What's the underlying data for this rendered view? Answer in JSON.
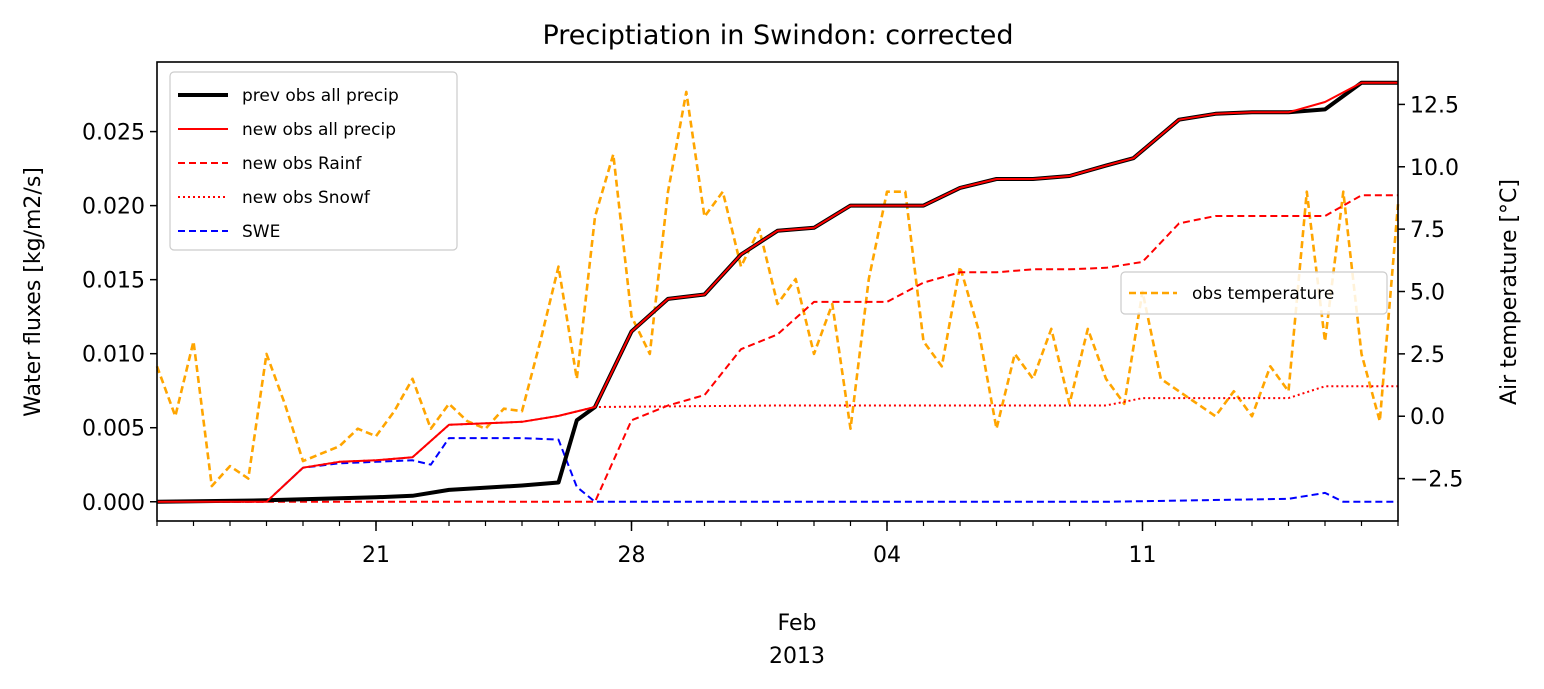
{
  "chart_data": {
    "type": "line",
    "title": "Preciptiation in Swindon: corrected",
    "ylabel": "Water fluxes [kg/m2/s]",
    "y2label": "Air temperature [°C]",
    "x_axis": {
      "start": "2013-01-15",
      "end": "2013-02-18",
      "tick_labels": [
        "21",
        "28",
        "04",
        "11"
      ],
      "tick_dates": [
        "2013-01-21",
        "2013-01-28",
        "2013-02-04",
        "2013-02-11"
      ],
      "month_label": "Feb",
      "year_label": "2013"
    },
    "ylim": [
      -0.0013,
      0.0297
    ],
    "y_ticks": [
      "0.000",
      "0.005",
      "0.010",
      "0.015",
      "0.020",
      "0.025"
    ],
    "y2lim": [
      -4.2,
      14.2
    ],
    "y2_ticks": [
      "−2.5",
      "0.0",
      "2.5",
      "5.0",
      "7.5",
      "10.0",
      "12.5"
    ],
    "legend_left": {
      "placement": "upper-left",
      "entries": [
        {
          "label": "prev obs all precip",
          "color": "#000000",
          "style": "solid-thick"
        },
        {
          "label": "new obs all precip",
          "color": "#ff0000",
          "style": "solid"
        },
        {
          "label": "new obs Rainf",
          "color": "#ff0000",
          "style": "dashed"
        },
        {
          "label": "new obs Snowf",
          "color": "#ff0000",
          "style": "dotted"
        },
        {
          "label": "SWE",
          "color": "#0000ff",
          "style": "dashed"
        }
      ]
    },
    "legend_right": {
      "placement": "center-right",
      "entries": [
        {
          "label": "obs temperature",
          "color": "#ffa500",
          "style": "dashed"
        }
      ]
    },
    "series": [
      {
        "name": "prev obs all precip",
        "axis": "left",
        "color": "#000000",
        "x": [
          "2013-01-15",
          "2013-01-18",
          "2013-01-21",
          "2013-01-22",
          "2013-01-23",
          "2013-01-25",
          "2013-01-26",
          "2013-01-26 12:00",
          "2013-01-27",
          "2013-01-28",
          "2013-01-29",
          "2013-01-30",
          "2013-01-31",
          "2013-02-01",
          "2013-02-02",
          "2013-02-03",
          "2013-02-04",
          "2013-02-05",
          "2013-02-06",
          "2013-02-07",
          "2013-02-08",
          "2013-02-09",
          "2013-02-10",
          "2013-02-10 18:00",
          "2013-02-12",
          "2013-02-13",
          "2013-02-14",
          "2013-02-15",
          "2013-02-16",
          "2013-02-17",
          "2013-02-18"
        ],
        "y": [
          0.0,
          0.0001,
          0.0003,
          0.0004,
          0.0008,
          0.0011,
          0.0013,
          0.0055,
          0.0064,
          0.0115,
          0.0137,
          0.014,
          0.0167,
          0.0183,
          0.0185,
          0.02,
          0.02,
          0.02,
          0.0212,
          0.0218,
          0.0218,
          0.022,
          0.0227,
          0.0232,
          0.0258,
          0.0262,
          0.0263,
          0.0263,
          0.0265,
          0.0283,
          0.0283
        ]
      },
      {
        "name": "new obs all precip",
        "axis": "left",
        "color": "#ff0000",
        "x": [
          "2013-01-15",
          "2013-01-18",
          "2013-01-19",
          "2013-01-20",
          "2013-01-21",
          "2013-01-22",
          "2013-01-23",
          "2013-01-25",
          "2013-01-26",
          "2013-01-27",
          "2013-01-28",
          "2013-01-29",
          "2013-01-30",
          "2013-01-31",
          "2013-02-01",
          "2013-02-02",
          "2013-02-03",
          "2013-02-04",
          "2013-02-05",
          "2013-02-06",
          "2013-02-07",
          "2013-02-08",
          "2013-02-09",
          "2013-02-10",
          "2013-02-10 18:00",
          "2013-02-12",
          "2013-02-13",
          "2013-02-14",
          "2013-02-15",
          "2013-02-16",
          "2013-02-17",
          "2013-02-18"
        ],
        "y": [
          0.0,
          0.0,
          0.0023,
          0.0027,
          0.0028,
          0.003,
          0.0052,
          0.0054,
          0.0058,
          0.0064,
          0.0115,
          0.0137,
          0.014,
          0.0167,
          0.0183,
          0.0185,
          0.02,
          0.02,
          0.02,
          0.0212,
          0.0218,
          0.0218,
          0.022,
          0.0227,
          0.0232,
          0.0258,
          0.0262,
          0.0263,
          0.0263,
          0.027,
          0.0283,
          0.0283
        ]
      },
      {
        "name": "new obs Rainf",
        "axis": "left",
        "color": "#ff0000",
        "x": [
          "2013-01-15",
          "2013-01-27",
          "2013-01-28",
          "2013-01-29",
          "2013-01-30",
          "2013-01-31",
          "2013-02-01",
          "2013-02-02",
          "2013-02-03",
          "2013-02-04",
          "2013-02-05",
          "2013-02-06",
          "2013-02-07",
          "2013-02-08",
          "2013-02-09",
          "2013-02-10",
          "2013-02-11",
          "2013-02-12",
          "2013-02-13",
          "2013-02-14",
          "2013-02-15",
          "2013-02-16",
          "2013-02-17",
          "2013-02-18"
        ],
        "y": [
          0.0,
          0.0,
          0.0055,
          0.0065,
          0.0072,
          0.0103,
          0.0113,
          0.0135,
          0.0135,
          0.0135,
          0.0148,
          0.0155,
          0.0155,
          0.0157,
          0.0157,
          0.0158,
          0.0162,
          0.0188,
          0.0193,
          0.0193,
          0.0193,
          0.0193,
          0.0207,
          0.0207
        ]
      },
      {
        "name": "new obs Snowf",
        "axis": "left",
        "color": "#ff0000",
        "x": [
          "2013-01-15",
          "2013-01-18",
          "2013-01-19",
          "2013-01-20",
          "2013-01-21",
          "2013-01-22",
          "2013-01-23",
          "2013-01-25",
          "2013-01-26",
          "2013-01-27",
          "2013-02-01",
          "2013-02-05",
          "2013-02-10",
          "2013-02-11",
          "2013-02-15",
          "2013-02-16",
          "2013-02-18"
        ],
        "y": [
          0.0,
          0.0,
          0.0023,
          0.0027,
          0.0028,
          0.003,
          0.0052,
          0.0054,
          0.0058,
          0.0064,
          0.0065,
          0.0065,
          0.0065,
          0.007,
          0.007,
          0.0078,
          0.0078
        ]
      },
      {
        "name": "SWE",
        "axis": "left",
        "color": "#0000ff",
        "x": [
          "2013-01-15",
          "2013-01-18",
          "2013-01-19",
          "2013-01-20",
          "2013-01-21",
          "2013-01-22",
          "2013-01-22 12:00",
          "2013-01-23",
          "2013-01-25",
          "2013-01-26",
          "2013-01-26 12:00",
          "2013-01-27",
          "2013-01-28",
          "2013-02-10",
          "2013-02-15",
          "2013-02-16",
          "2013-02-16 12:00",
          "2013-02-18"
        ],
        "y": [
          0.0,
          0.0,
          0.0023,
          0.0026,
          0.0027,
          0.0028,
          0.0025,
          0.0043,
          0.0043,
          0.0042,
          0.001,
          0.0,
          0.0,
          0.0,
          0.0002,
          0.0006,
          0.0,
          0.0
        ]
      },
      {
        "name": "obs temperature",
        "axis": "right",
        "color": "#ffa500",
        "x": [
          "2013-01-15",
          "2013-01-15 12:00",
          "2013-01-16",
          "2013-01-16 12:00",
          "2013-01-17",
          "2013-01-17 12:00",
          "2013-01-18",
          "2013-01-18 12:00",
          "2013-01-19",
          "2013-01-19 12:00",
          "2013-01-20",
          "2013-01-20 12:00",
          "2013-01-21",
          "2013-01-21 12:00",
          "2013-01-22",
          "2013-01-22 12:00",
          "2013-01-23",
          "2013-01-23 12:00",
          "2013-01-24",
          "2013-01-24 12:00",
          "2013-01-25",
          "2013-01-25 12:00",
          "2013-01-26",
          "2013-01-26 12:00",
          "2013-01-27",
          "2013-01-27 12:00",
          "2013-01-28",
          "2013-01-28 12:00",
          "2013-01-29",
          "2013-01-29 12:00",
          "2013-01-30",
          "2013-01-30 12:00",
          "2013-01-31",
          "2013-01-31 12:00",
          "2013-02-01",
          "2013-02-01 12:00",
          "2013-02-02",
          "2013-02-02 12:00",
          "2013-02-03",
          "2013-02-03 12:00",
          "2013-02-04",
          "2013-02-04 12:00",
          "2013-02-05",
          "2013-02-05 12:00",
          "2013-02-06",
          "2013-02-06 12:00",
          "2013-02-07",
          "2013-02-07 12:00",
          "2013-02-08",
          "2013-02-08 12:00",
          "2013-02-09",
          "2013-02-09 12:00",
          "2013-02-10",
          "2013-02-10 12:00",
          "2013-02-11",
          "2013-02-11 12:00",
          "2013-02-12",
          "2013-02-12 12:00",
          "2013-02-13",
          "2013-02-13 12:00",
          "2013-02-14",
          "2013-02-14 12:00",
          "2013-02-15",
          "2013-02-15 12:00",
          "2013-02-16",
          "2013-02-16 12:00",
          "2013-02-17",
          "2013-02-17 12:00",
          "2013-02-18"
        ],
        "y": [
          2.0,
          0.0,
          3.0,
          -2.8,
          -2.0,
          -2.5,
          2.5,
          0.5,
          -1.8,
          -1.5,
          -1.2,
          -0.5,
          -0.8,
          0.2,
          1.5,
          -0.5,
          0.5,
          -0.2,
          -0.5,
          0.3,
          0.2,
          3.0,
          6.0,
          1.5,
          8.0,
          10.5,
          4.0,
          2.5,
          9.0,
          13.0,
          8.0,
          9.0,
          6.0,
          7.5,
          4.5,
          5.5,
          2.5,
          4.5,
          -0.5,
          5.5,
          9.0,
          9.0,
          3.0,
          2.0,
          6.0,
          3.5,
          -0.5,
          2.5,
          1.5,
          3.5,
          0.5,
          3.5,
          1.5,
          0.5,
          5.0,
          1.5,
          1.0,
          0.5,
          0.0,
          1.0,
          0.0,
          2.0,
          1.0,
          9.0,
          3.0,
          9.0,
          2.5,
          -0.2,
          8.5
        ]
      }
    ]
  }
}
